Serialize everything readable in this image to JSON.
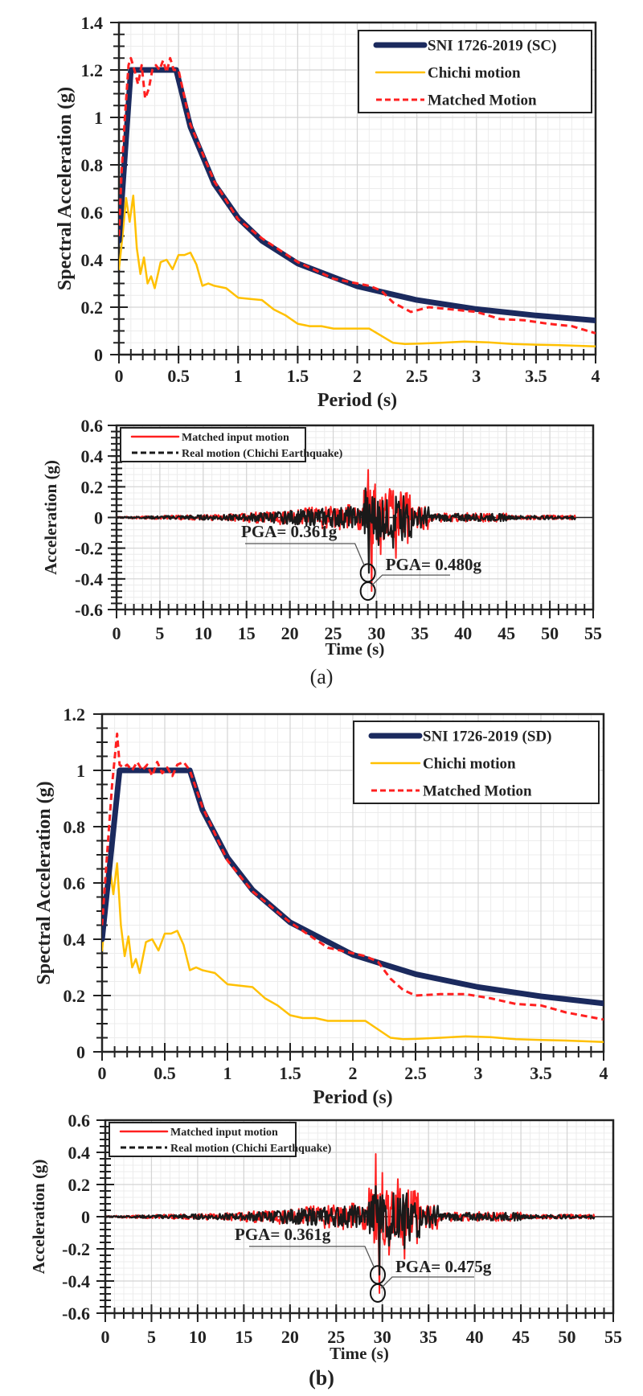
{
  "figure": {
    "captions": [
      "(a)",
      "(b)"
    ]
  },
  "chart_data": [
    {
      "id": "a-spectrum",
      "type": "line",
      "title": "",
      "xlabel": "Period (s)",
      "ylabel": "Spectral Acceleration (g)",
      "xlim": [
        0,
        4
      ],
      "ylim": [
        0,
        1.4
      ],
      "xticks": [
        0,
        0.5,
        1,
        1.5,
        2,
        2.5,
        3,
        3.5,
        4
      ],
      "xtick_labels": [
        "0",
        "0.5",
        "1",
        "1.5",
        "2",
        "2.5",
        "3",
        "3.5",
        "4"
      ],
      "yticks": [
        0,
        0.2,
        0.4,
        0.6,
        0.8,
        1,
        1.2,
        1.4
      ],
      "ytick_labels": [
        "0",
        "0.2",
        "0.4",
        "0.6",
        "0.8",
        "1",
        "1.2",
        "1.4"
      ],
      "grid": true,
      "legend_position": "top-right",
      "series": [
        {
          "name": "SNI 1726-2019 (SC)",
          "color": "#1b2a5e",
          "style": "solid-thick",
          "x": [
            0,
            0.1,
            0.48,
            0.6,
            0.8,
            1.0,
            1.2,
            1.5,
            2.0,
            2.5,
            3.0,
            3.5,
            4.0
          ],
          "y": [
            0.48,
            1.2,
            1.2,
            0.96,
            0.72,
            0.576,
            0.48,
            0.384,
            0.288,
            0.23,
            0.192,
            0.165,
            0.144
          ]
        },
        {
          "name": "Chichi motion",
          "color": "#ffc000",
          "style": "solid",
          "x": [
            0,
            0.03,
            0.06,
            0.09,
            0.12,
            0.15,
            0.18,
            0.21,
            0.24,
            0.27,
            0.3,
            0.35,
            0.4,
            0.45,
            0.5,
            0.55,
            0.6,
            0.65,
            0.7,
            0.75,
            0.8,
            0.9,
            1.0,
            1.1,
            1.2,
            1.3,
            1.4,
            1.5,
            1.6,
            1.7,
            1.8,
            1.9,
            2.0,
            2.1,
            2.2,
            2.3,
            2.4,
            2.5,
            2.7,
            2.9,
            3.1,
            3.3,
            3.5,
            3.7,
            4.0
          ],
          "y": [
            0.36,
            0.5,
            0.66,
            0.56,
            0.67,
            0.45,
            0.34,
            0.41,
            0.3,
            0.33,
            0.28,
            0.39,
            0.4,
            0.36,
            0.42,
            0.42,
            0.43,
            0.38,
            0.29,
            0.3,
            0.29,
            0.28,
            0.24,
            0.235,
            0.23,
            0.19,
            0.165,
            0.13,
            0.12,
            0.12,
            0.11,
            0.11,
            0.11,
            0.11,
            0.08,
            0.05,
            0.045,
            0.046,
            0.05,
            0.055,
            0.052,
            0.045,
            0.042,
            0.04,
            0.035
          ]
        },
        {
          "name": "Matched Motion",
          "color": "#ff2020",
          "style": "dashed",
          "x": [
            0,
            0.02,
            0.05,
            0.08,
            0.1,
            0.13,
            0.16,
            0.19,
            0.22,
            0.25,
            0.28,
            0.31,
            0.34,
            0.37,
            0.4,
            0.43,
            0.46,
            0.5,
            0.6,
            0.8,
            1.0,
            1.2,
            1.5,
            1.8,
            2.0,
            2.1,
            2.2,
            2.3,
            2.45,
            2.6,
            2.8,
            3.0,
            3.2,
            3.4,
            3.6,
            3.8,
            4.0
          ],
          "y": [
            0.5,
            0.75,
            1.0,
            1.22,
            1.25,
            1.2,
            1.14,
            1.22,
            1.08,
            1.12,
            1.2,
            1.22,
            1.2,
            1.24,
            1.19,
            1.25,
            1.2,
            1.2,
            0.97,
            0.73,
            0.57,
            0.49,
            0.39,
            0.32,
            0.3,
            0.29,
            0.27,
            0.22,
            0.18,
            0.2,
            0.19,
            0.18,
            0.15,
            0.145,
            0.13,
            0.12,
            0.09
          ]
        }
      ]
    },
    {
      "id": "a-timehistory",
      "type": "line",
      "title": "",
      "xlabel": "Time (s)",
      "ylabel": "Acceleration (g)",
      "xlim": [
        0,
        55
      ],
      "ylim": [
        -0.6,
        0.6
      ],
      "xticks": [
        0,
        5,
        10,
        15,
        20,
        25,
        30,
        35,
        40,
        45,
        50,
        55
      ],
      "xtick_labels": [
        "0",
        "5",
        "10",
        "15",
        "20",
        "25",
        "30",
        "35",
        "40",
        "45",
        "50",
        "55"
      ],
      "yticks": [
        -0.6,
        -0.4,
        -0.2,
        0,
        0.2,
        0.4,
        0.6
      ],
      "ytick_labels": [
        "-0.6",
        "-0.4",
        "-0.2",
        "0",
        "0.2",
        "0.4",
        "0.6"
      ],
      "grid": true,
      "legend_position": "top-left",
      "duration": 53,
      "series": [
        {
          "name": "Matched input motion",
          "color": "#ff2020",
          "style": "solid",
          "pga": 0.48,
          "peak_positive": 0.31,
          "peak_time": 29.3
        },
        {
          "name": "Real motion (Chichi Earthquake)",
          "color": "#1a1a1a",
          "style": "dashed",
          "pga": 0.361,
          "peak_positive": 0.19,
          "peak_time": 29.0
        }
      ],
      "annotations": [
        {
          "text": "PGA= 0.361g",
          "color": "#1a1a1a",
          "x": 29.0,
          "y": -0.361
        },
        {
          "text": "PGA= 0.480g",
          "color": "#ff2020",
          "x": 29.0,
          "y": -0.48
        }
      ]
    },
    {
      "id": "b-spectrum",
      "type": "line",
      "title": "",
      "xlabel": "Period (s)",
      "ylabel": "Spectral Acceleration (g)",
      "xlim": [
        0,
        4
      ],
      "ylim": [
        0,
        1.2
      ],
      "xticks": [
        0,
        0.5,
        1,
        1.5,
        2,
        2.5,
        3,
        3.5,
        4
      ],
      "xtick_labels": [
        "0",
        "0.5",
        "1",
        "1.5",
        "2",
        "2.5",
        "3",
        "3.5",
        "4"
      ],
      "yticks": [
        0,
        0.2,
        0.4,
        0.6,
        0.8,
        1,
        1.2
      ],
      "ytick_labels": [
        "0",
        "0.2",
        "0.4",
        "0.6",
        "0.8",
        "1",
        "1.2"
      ],
      "grid": true,
      "legend_position": "top-right",
      "series": [
        {
          "name": "SNI 1726-2019 (SD)",
          "color": "#1b2a5e",
          "style": "solid-thick",
          "x": [
            0,
            0.14,
            0.7,
            0.8,
            1.0,
            1.2,
            1.5,
            2.0,
            2.5,
            3.0,
            3.5,
            4.0
          ],
          "y": [
            0.4,
            1.0,
            1.0,
            0.86,
            0.69,
            0.575,
            0.46,
            0.345,
            0.276,
            0.23,
            0.197,
            0.172
          ]
        },
        {
          "name": "Chichi motion",
          "color": "#ffc000",
          "style": "solid",
          "x": [
            0,
            0.03,
            0.06,
            0.09,
            0.12,
            0.15,
            0.18,
            0.21,
            0.24,
            0.27,
            0.3,
            0.35,
            0.4,
            0.45,
            0.5,
            0.55,
            0.6,
            0.65,
            0.7,
            0.75,
            0.8,
            0.9,
            1.0,
            1.1,
            1.2,
            1.3,
            1.4,
            1.5,
            1.6,
            1.7,
            1.8,
            1.9,
            2.0,
            2.1,
            2.2,
            2.3,
            2.4,
            2.5,
            2.7,
            2.9,
            3.1,
            3.3,
            3.5,
            3.7,
            4.0
          ],
          "y": [
            0.36,
            0.5,
            0.66,
            0.56,
            0.67,
            0.45,
            0.34,
            0.41,
            0.3,
            0.33,
            0.28,
            0.39,
            0.4,
            0.36,
            0.42,
            0.42,
            0.43,
            0.38,
            0.29,
            0.3,
            0.29,
            0.28,
            0.24,
            0.235,
            0.23,
            0.19,
            0.165,
            0.13,
            0.12,
            0.12,
            0.11,
            0.11,
            0.11,
            0.11,
            0.08,
            0.05,
            0.045,
            0.046,
            0.05,
            0.055,
            0.052,
            0.045,
            0.042,
            0.04,
            0.035
          ]
        },
        {
          "name": "Matched Motion",
          "color": "#ff2020",
          "style": "dashed",
          "x": [
            0,
            0.04,
            0.08,
            0.12,
            0.14,
            0.17,
            0.2,
            0.24,
            0.28,
            0.32,
            0.36,
            0.4,
            0.44,
            0.48,
            0.52,
            0.56,
            0.6,
            0.65,
            0.7,
            0.8,
            1.0,
            1.2,
            1.5,
            1.8,
            2.0,
            2.1,
            2.2,
            2.3,
            2.4,
            2.5,
            2.7,
            2.9,
            3.1,
            3.3,
            3.5,
            3.7,
            4.0
          ],
          "y": [
            0.45,
            0.7,
            0.95,
            1.13,
            1.02,
            1.01,
            1.02,
            1.0,
            1.03,
            1.0,
            1.02,
            0.98,
            1.03,
            0.99,
            1.01,
            0.98,
            1.02,
            1.03,
            1.0,
            0.87,
            0.68,
            0.57,
            0.46,
            0.37,
            0.35,
            0.34,
            0.32,
            0.26,
            0.22,
            0.2,
            0.205,
            0.205,
            0.19,
            0.17,
            0.165,
            0.14,
            0.115
          ]
        }
      ]
    },
    {
      "id": "b-timehistory",
      "type": "line",
      "title": "",
      "xlabel": "Time (s)",
      "ylabel": "Acceleration (g)",
      "xlim": [
        0,
        55
      ],
      "ylim": [
        -0.6,
        0.6
      ],
      "xticks": [
        0,
        5,
        10,
        15,
        20,
        25,
        30,
        35,
        40,
        45,
        50,
        55
      ],
      "xtick_labels": [
        "0",
        "5",
        "10",
        "15",
        "20",
        "25",
        "30",
        "35",
        "40",
        "45",
        "50",
        "55"
      ],
      "yticks": [
        -0.6,
        -0.4,
        -0.2,
        0,
        0.2,
        0.4,
        0.6
      ],
      "ytick_labels": [
        "-0.6",
        "-0.4",
        "-0.2",
        "0",
        "0.2",
        "0.4",
        "0.6"
      ],
      "grid": true,
      "legend_position": "top-left",
      "duration": 53,
      "series": [
        {
          "name": "Matched input motion",
          "color": "#ff2020",
          "style": "solid",
          "pga": 0.475,
          "peak_positive": 0.39,
          "peak_time": 29.5
        },
        {
          "name": "Real motion (Chichi Earthquake)",
          "color": "#1a1a1a",
          "style": "dashed",
          "pga": 0.361,
          "peak_positive": 0.19,
          "peak_time": 29.5
        }
      ],
      "annotations": [
        {
          "text": "PGA= 0.361g",
          "color": "#1a1a1a",
          "x": 29.5,
          "y": -0.361
        },
        {
          "text": "PGA= 0.475g",
          "color": "#ff2020",
          "x": 29.5,
          "y": -0.475
        }
      ]
    }
  ]
}
